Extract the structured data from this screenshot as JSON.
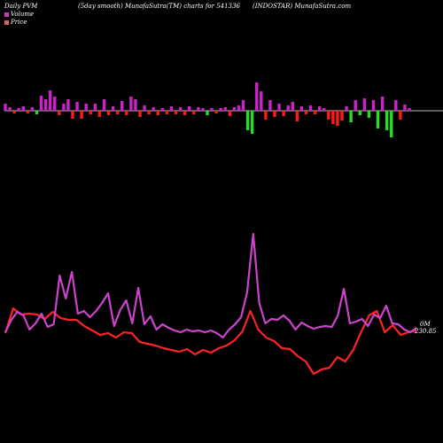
{
  "header": {
    "left": "Daily PVM",
    "center_left": "(5day smooth) MunafaSutra(TM) charts for 541336",
    "center_right": "(INDOSTAR) MunafaSutra.com"
  },
  "legend": {
    "volume_label": "Volume",
    "price_label": "Price",
    "volume_color": "#cc33cc",
    "price_color": "#e06060"
  },
  "end_labels": {
    "volume": "0M",
    "price": "230.85"
  },
  "colors": {
    "background": "#000000",
    "axis_line": "#bbbbbb",
    "bar_magenta": "#cc22cc",
    "bar_red": "#ff1a1a",
    "bar_green": "#22dd22",
    "volume_line": "#cc44cc",
    "price_line": "#ff2222"
  },
  "chart_data": [
    {
      "type": "bar",
      "title": "",
      "bars": [
        {
          "v": 8,
          "c": "magenta"
        },
        {
          "v": 4,
          "c": "magenta"
        },
        {
          "v": -3,
          "c": "red"
        },
        {
          "v": 3,
          "c": "magenta"
        },
        {
          "v": 5,
          "c": "magenta"
        },
        {
          "v": -3,
          "c": "red"
        },
        {
          "v": 4,
          "c": "magenta"
        },
        {
          "v": -4,
          "c": "green"
        },
        {
          "v": 17,
          "c": "magenta"
        },
        {
          "v": 13,
          "c": "magenta"
        },
        {
          "v": 23,
          "c": "magenta"
        },
        {
          "v": 16,
          "c": "magenta"
        },
        {
          "v": -5,
          "c": "red"
        },
        {
          "v": 8,
          "c": "magenta"
        },
        {
          "v": 13,
          "c": "magenta"
        },
        {
          "v": -9,
          "c": "red"
        },
        {
          "v": 10,
          "c": "magenta"
        },
        {
          "v": -9,
          "c": "red"
        },
        {
          "v": 8,
          "c": "magenta"
        },
        {
          "v": -4,
          "c": "red"
        },
        {
          "v": 8,
          "c": "magenta"
        },
        {
          "v": -7,
          "c": "red"
        },
        {
          "v": 13,
          "c": "magenta"
        },
        {
          "v": -5,
          "c": "red"
        },
        {
          "v": 5,
          "c": "magenta"
        },
        {
          "v": -4,
          "c": "red"
        },
        {
          "v": 11,
          "c": "magenta"
        },
        {
          "v": -5,
          "c": "red"
        },
        {
          "v": 16,
          "c": "magenta"
        },
        {
          "v": 13,
          "c": "magenta"
        },
        {
          "v": -7,
          "c": "red"
        },
        {
          "v": 6,
          "c": "magenta"
        },
        {
          "v": -4,
          "c": "red"
        },
        {
          "v": 4,
          "c": "magenta"
        },
        {
          "v": -5,
          "c": "red"
        },
        {
          "v": 3,
          "c": "magenta"
        },
        {
          "v": -4,
          "c": "red"
        },
        {
          "v": 5,
          "c": "magenta"
        },
        {
          "v": -4,
          "c": "red"
        },
        {
          "v": 4,
          "c": "magenta"
        },
        {
          "v": -5,
          "c": "red"
        },
        {
          "v": 5,
          "c": "magenta"
        },
        {
          "v": -4,
          "c": "red"
        },
        {
          "v": 4,
          "c": "magenta"
        },
        {
          "v": 3,
          "c": "magenta"
        },
        {
          "v": -5,
          "c": "green"
        },
        {
          "v": 3,
          "c": "magenta"
        },
        {
          "v": -3,
          "c": "red"
        },
        {
          "v": 3,
          "c": "magenta"
        },
        {
          "v": 4,
          "c": "magenta"
        },
        {
          "v": -6,
          "c": "red"
        },
        {
          "v": 4,
          "c": "magenta"
        },
        {
          "v": 6,
          "c": "magenta"
        },
        {
          "v": 12,
          "c": "magenta"
        },
        {
          "v": -22,
          "c": "green"
        },
        {
          "v": -26,
          "c": "green"
        },
        {
          "v": 32,
          "c": "magenta"
        },
        {
          "v": 22,
          "c": "magenta"
        },
        {
          "v": -10,
          "c": "red"
        },
        {
          "v": 12,
          "c": "magenta"
        },
        {
          "v": -7,
          "c": "red"
        },
        {
          "v": 8,
          "c": "magenta"
        },
        {
          "v": -6,
          "c": "red"
        },
        {
          "v": 6,
          "c": "magenta"
        },
        {
          "v": 10,
          "c": "magenta"
        },
        {
          "v": -12,
          "c": "red"
        },
        {
          "v": 5,
          "c": "magenta"
        },
        {
          "v": -4,
          "c": "red"
        },
        {
          "v": 6,
          "c": "magenta"
        },
        {
          "v": -4,
          "c": "red"
        },
        {
          "v": 5,
          "c": "magenta"
        },
        {
          "v": 3,
          "c": "magenta"
        },
        {
          "v": -10,
          "c": "red"
        },
        {
          "v": -15,
          "c": "red"
        },
        {
          "v": -17,
          "c": "red"
        },
        {
          "v": -11,
          "c": "red"
        },
        {
          "v": 5,
          "c": "magenta"
        },
        {
          "v": -13,
          "c": "green"
        },
        {
          "v": 12,
          "c": "magenta"
        },
        {
          "v": -5,
          "c": "green"
        },
        {
          "v": 14,
          "c": "magenta"
        },
        {
          "v": -8,
          "c": "green"
        },
        {
          "v": 12,
          "c": "magenta"
        },
        {
          "v": -20,
          "c": "green"
        },
        {
          "v": 16,
          "c": "magenta"
        },
        {
          "v": -22,
          "c": "green"
        },
        {
          "v": -30,
          "c": "green"
        },
        {
          "v": 12,
          "c": "magenta"
        },
        {
          "v": -10,
          "c": "red"
        },
        {
          "v": 7,
          "c": "magenta"
        },
        {
          "v": 3,
          "c": "magenta"
        }
      ]
    },
    {
      "type": "line",
      "title": "",
      "series": [
        {
          "name": "Volume",
          "values": [
            375,
            361,
            352,
            356,
            372,
            365,
            354,
            369,
            366,
            311,
            337,
            307,
            354,
            351,
            358,
            351,
            342,
            331,
            368,
            350,
            339,
            365,
            325,
            366,
            357,
            372,
            366,
            370,
            373,
            375,
            372,
            374,
            373,
            375,
            373,
            376,
            381,
            372,
            366,
            358,
            330,
            264,
            342,
            365,
            360,
            361,
            356,
            362,
            372,
            364,
            368,
            371,
            369,
            368,
            369,
            356,
            326,
            365,
            363,
            360,
            368,
            355,
            359,
            345,
            365,
            366,
            372,
            375,
            370
          ]
        },
        {
          "name": "Price",
          "values": [
            376,
            348,
            355,
            354,
            355,
            360,
            352,
            359,
            361,
            361,
            368,
            373,
            378,
            376,
            381,
            375,
            376,
            386,
            388,
            390,
            393,
            395,
            397,
            394,
            400,
            395,
            398,
            393,
            390,
            384,
            374,
            351,
            372,
            381,
            385,
            393,
            394,
            402,
            408,
            422,
            417,
            415,
            403,
            408,
            395,
            375,
            356,
            351,
            375,
            367,
            378,
            375,
            373
          ]
        }
      ],
      "volume_x_span": [
        0,
        68
      ],
      "price_x_span": [
        0,
        52
      ]
    }
  ]
}
